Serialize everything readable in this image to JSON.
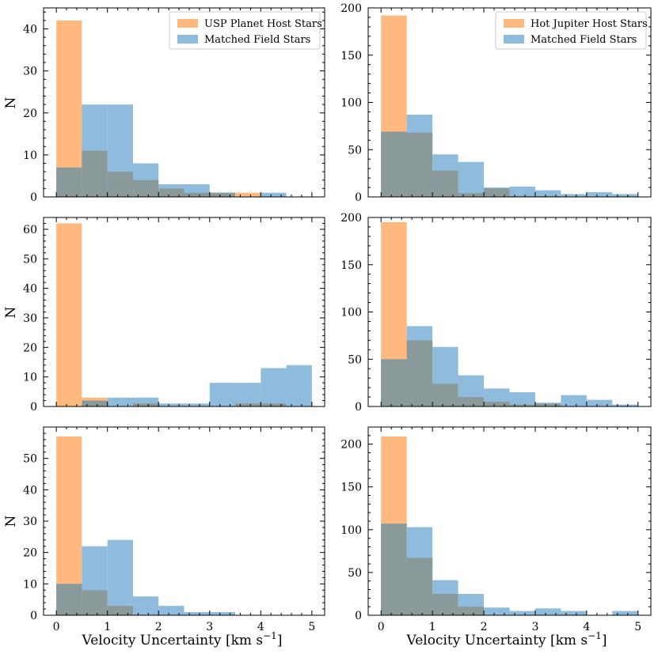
{
  "colors": {
    "host": "#ffb97f",
    "field": "#8fbcdc",
    "overlap": "#8a9a9b",
    "axes": "#000000",
    "background": "#ffffff"
  },
  "labels": {
    "ylabel": "N",
    "xlabel": "Velocity Uncertainty [km s",
    "xlabel_sup": "−1",
    "xlabel_end": "]"
  },
  "chart_data": [
    {
      "type": "bar",
      "panel": "top-left",
      "legend_position": "top-right",
      "bin_edges": [
        0,
        0.5,
        1,
        1.5,
        2,
        2.5,
        3,
        3.5,
        4,
        4.5,
        5
      ],
      "series": [
        {
          "name": "USP Planet Host Stars",
          "color_key": "host",
          "values": [
            42,
            11,
            6,
            4,
            2,
            1,
            1,
            1,
            0,
            0
          ]
        },
        {
          "name": "Matched Field Stars",
          "color_key": "field",
          "values": [
            7,
            22,
            22,
            8,
            3,
            3,
            1,
            0,
            1,
            0
          ]
        }
      ],
      "ylim": [
        0,
        45
      ],
      "yticks": [
        0,
        10,
        20,
        30,
        40
      ],
      "xlim": [
        -0.25,
        5.25
      ],
      "xticks": [
        0,
        1,
        2,
        3,
        4,
        5
      ],
      "show_ylabel": true,
      "show_xticklabels": false,
      "show_legend": true
    },
    {
      "type": "bar",
      "panel": "top-right",
      "legend_position": "top-right",
      "bin_edges": [
        0,
        0.5,
        1,
        1.5,
        2,
        2.5,
        3,
        3.5,
        4,
        4.5,
        5
      ],
      "series": [
        {
          "name": "Hot Jupiter Host Stars",
          "color_key": "host",
          "values": [
            192,
            68,
            28,
            4,
            9,
            1,
            1,
            0,
            0,
            0
          ]
        },
        {
          "name": "Matched Field Stars",
          "color_key": "field",
          "values": [
            69,
            87,
            45,
            37,
            10,
            11,
            7,
            3,
            5,
            3
          ]
        }
      ],
      "ylim": [
        0,
        200
      ],
      "yticks": [
        0,
        50,
        100,
        150,
        200
      ],
      "xlim": [
        -0.25,
        5.25
      ],
      "xticks": [
        0,
        1,
        2,
        3,
        4,
        5
      ],
      "show_ylabel": false,
      "show_xticklabels": false,
      "show_legend": true
    },
    {
      "type": "bar",
      "panel": "middle-left",
      "bin_edges": [
        0,
        0.5,
        1,
        1.5,
        2,
        2.5,
        3,
        3.5,
        4,
        4.5,
        5
      ],
      "series": [
        {
          "name": "USP Planet Host Stars",
          "color_key": "host",
          "values": [
            62,
            3,
            0,
            1,
            0,
            0,
            0,
            1,
            1,
            0
          ]
        },
        {
          "name": "Matched Field Stars",
          "color_key": "field",
          "values": [
            0,
            2,
            3,
            3,
            1,
            1,
            8,
            8,
            13,
            14
          ]
        }
      ],
      "ylim": [
        0,
        64
      ],
      "yticks": [
        0,
        10,
        20,
        30,
        40,
        50,
        60
      ],
      "xlim": [
        -0.25,
        5.25
      ],
      "xticks": [
        0,
        1,
        2,
        3,
        4,
        5
      ],
      "show_ylabel": true,
      "show_xticklabels": false,
      "show_legend": false
    },
    {
      "type": "bar",
      "panel": "middle-right",
      "bin_edges": [
        0,
        0.5,
        1,
        1.5,
        2,
        2.5,
        3,
        3.5,
        4,
        4.5,
        5
      ],
      "series": [
        {
          "name": "Hot Jupiter Host Stars",
          "color_key": "host",
          "values": [
            195,
            70,
            24,
            10,
            5,
            2,
            3,
            0,
            0,
            0
          ]
        },
        {
          "name": "Matched Field Stars",
          "color_key": "field",
          "values": [
            50,
            85,
            63,
            33,
            19,
            15,
            4,
            12,
            7,
            2
          ]
        }
      ],
      "ylim": [
        0,
        200
      ],
      "yticks": [
        0,
        50,
        100,
        150,
        200
      ],
      "xlim": [
        -0.25,
        5.25
      ],
      "xticks": [
        0,
        1,
        2,
        3,
        4,
        5
      ],
      "show_ylabel": false,
      "show_xticklabels": false,
      "show_legend": false
    },
    {
      "type": "bar",
      "panel": "bottom-left",
      "bin_edges": [
        0,
        0.5,
        1,
        1.5,
        2,
        2.5,
        3,
        3.5,
        4,
        4.5,
        5
      ],
      "series": [
        {
          "name": "USP Planet Host Stars",
          "color_key": "host",
          "values": [
            57,
            8,
            3,
            0,
            0,
            0,
            0,
            0,
            0,
            0
          ]
        },
        {
          "name": "Matched Field Stars",
          "color_key": "field",
          "values": [
            10,
            22,
            24,
            6,
            3,
            1,
            1,
            0,
            0,
            0
          ]
        }
      ],
      "ylim": [
        0,
        60
      ],
      "yticks": [
        0,
        10,
        20,
        30,
        40,
        50
      ],
      "xlim": [
        -0.25,
        5.25
      ],
      "xticks": [
        0,
        1,
        2,
        3,
        4,
        5
      ],
      "show_ylabel": true,
      "show_xticklabels": true,
      "show_legend": false
    },
    {
      "type": "bar",
      "panel": "bottom-right",
      "bin_edges": [
        0,
        0.5,
        1,
        1.5,
        2,
        2.5,
        3,
        3.5,
        4,
        4.5,
        5
      ],
      "series": [
        {
          "name": "Hot Jupiter Host Stars",
          "color_key": "host",
          "values": [
            209,
            67,
            25,
            10,
            0,
            0,
            0,
            0,
            0,
            0
          ]
        },
        {
          "name": "Matched Field Stars",
          "color_key": "field",
          "values": [
            107,
            103,
            41,
            25,
            9,
            5,
            8,
            5,
            0,
            5
          ]
        }
      ],
      "ylim": [
        0,
        220
      ],
      "yticks": [
        0,
        50,
        100,
        150,
        200
      ],
      "xlim": [
        -0.25,
        5.25
      ],
      "xticks": [
        0,
        1,
        2,
        3,
        4,
        5
      ],
      "show_ylabel": false,
      "show_xticklabels": true,
      "show_legend": false
    }
  ]
}
